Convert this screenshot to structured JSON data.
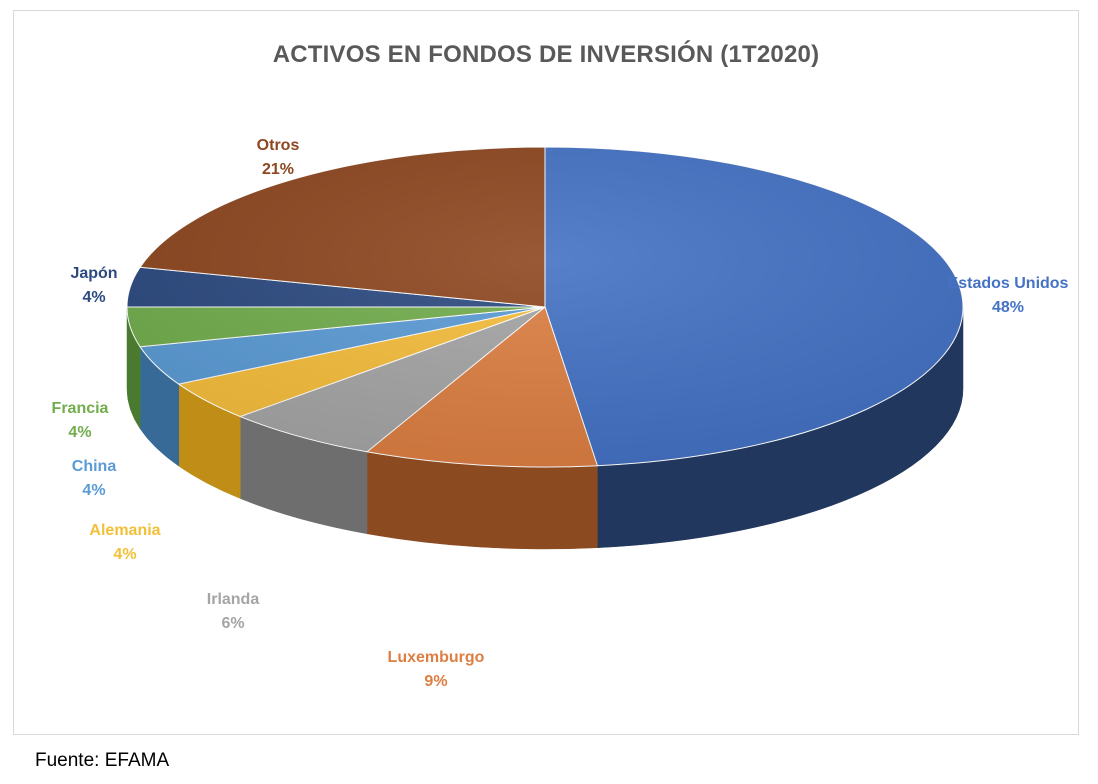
{
  "chart_data": {
    "type": "pie",
    "title": "ACTIVOS EN FONDOS DE INVERSIÓN (1T2020)",
    "slices": [
      {
        "label": "Estados Unidos",
        "value": 48,
        "display": "48%",
        "color": "#4472C4",
        "side_color": "#22375E"
      },
      {
        "label": "Luxemburgo",
        "value": 9,
        "display": "9%",
        "color": "#DD7F43",
        "side_color": "#8B4A20"
      },
      {
        "label": "Irlanda",
        "value": 6,
        "display": "6%",
        "color": "#A5A5A5",
        "side_color": "#6E6E6E"
      },
      {
        "label": "Alemania",
        "value": 4,
        "display": "4%",
        "color": "#F5BE3C",
        "side_color": "#C08E17"
      },
      {
        "label": "China",
        "value": 4,
        "display": "4%",
        "color": "#5B9BD5",
        "side_color": "#386A97"
      },
      {
        "label": "Francia",
        "value": 4,
        "display": "4%",
        "color": "#72AD4D",
        "side_color": "#4A7A2F"
      },
      {
        "label": "Japón",
        "value": 4,
        "display": "4%",
        "color": "#2C4A80",
        "side_color": "#1B2F55"
      },
      {
        "label": "Otros",
        "value": 21,
        "display": "21%",
        "color": "#8E4720",
        "side_color": "#5E2E12"
      }
    ],
    "label_colors": {
      "Estados Unidos": "#4472C4",
      "Luxemburgo": "#DD7F43",
      "Irlanda": "#A5A5A5",
      "Alemania": "#F2C037",
      "China": "#5B9BD5",
      "Francia": "#72AD4D",
      "Japón": "#2C4A80",
      "Otros": "#8E4720"
    },
    "legend": "none"
  },
  "source": "Fuente: EFAMA"
}
